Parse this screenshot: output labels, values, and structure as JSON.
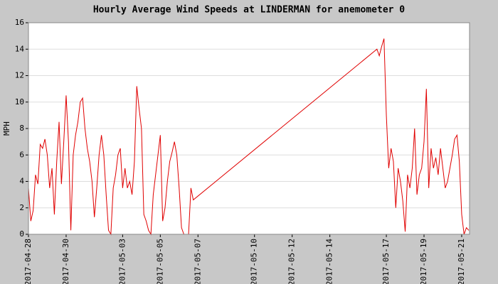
{
  "chart_data": {
    "type": "line",
    "title": "Hourly Average Wind Speeds at LINDERMAN for anemometer 0",
    "y_label": "MPH",
    "x": [
      "2017-04-28 00:00",
      "2017-04-28 03:00",
      "2017-04-28 06:00",
      "2017-04-28 09:00",
      "2017-04-28 12:00",
      "2017-04-28 15:00",
      "2017-04-28 18:00",
      "2017-04-28 21:00",
      "2017-04-29 00:00",
      "2017-04-29 03:00",
      "2017-04-29 06:00",
      "2017-04-29 09:00",
      "2017-04-29 12:00",
      "2017-04-29 15:00",
      "2017-04-29 18:00",
      "2017-04-29 21:00",
      "2017-04-30 00:00",
      "2017-04-30 03:00",
      "2017-04-30 06:00",
      "2017-04-30 09:00",
      "2017-04-30 12:00",
      "2017-04-30 15:00",
      "2017-04-30 18:00",
      "2017-04-30 21:00",
      "2017-05-01 00:00",
      "2017-05-01 03:00",
      "2017-05-01 06:00",
      "2017-05-01 09:00",
      "2017-05-01 12:00",
      "2017-05-01 15:00",
      "2017-05-01 18:00",
      "2017-05-01 21:00",
      "2017-05-02 00:00",
      "2017-05-02 03:00",
      "2017-05-02 06:00",
      "2017-05-02 09:00",
      "2017-05-02 12:00",
      "2017-05-02 15:00",
      "2017-05-02 18:00",
      "2017-05-02 21:00",
      "2017-05-03 00:00",
      "2017-05-03 03:00",
      "2017-05-03 06:00",
      "2017-05-03 09:00",
      "2017-05-03 12:00",
      "2017-05-03 15:00",
      "2017-05-03 18:00",
      "2017-05-03 21:00",
      "2017-05-04 00:00",
      "2017-05-04 03:00",
      "2017-05-04 06:00",
      "2017-05-04 09:00",
      "2017-05-04 12:00",
      "2017-05-04 15:00",
      "2017-05-04 18:00",
      "2017-05-04 21:00",
      "2017-05-05 00:00",
      "2017-05-05 03:00",
      "2017-05-05 06:00",
      "2017-05-05 09:00",
      "2017-05-05 12:00",
      "2017-05-05 15:00",
      "2017-05-05 18:00",
      "2017-05-05 21:00",
      "2017-05-06 00:00",
      "2017-05-06 03:00",
      "2017-05-06 06:00",
      "2017-05-06 09:00",
      "2017-05-06 12:00",
      "2017-05-06 15:00",
      "2017-05-06 18:00",
      "2017-05-16 12:00",
      "2017-05-16 15:00",
      "2017-05-16 18:00",
      "2017-05-16 21:00",
      "2017-05-17 00:00",
      "2017-05-17 03:00",
      "2017-05-17 06:00",
      "2017-05-17 09:00",
      "2017-05-17 12:00",
      "2017-05-17 15:00",
      "2017-05-17 18:00",
      "2017-05-17 21:00",
      "2017-05-18 00:00",
      "2017-05-18 03:00",
      "2017-05-18 06:00",
      "2017-05-18 09:00",
      "2017-05-18 12:00",
      "2017-05-18 15:00",
      "2017-05-18 18:00",
      "2017-05-18 21:00",
      "2017-05-19 00:00",
      "2017-05-19 03:00",
      "2017-05-19 06:00",
      "2017-05-19 09:00",
      "2017-05-19 12:00",
      "2017-05-19 15:00",
      "2017-05-19 18:00",
      "2017-05-19 21:00",
      "2017-05-20 00:00",
      "2017-05-20 03:00",
      "2017-05-20 06:00",
      "2017-05-20 09:00",
      "2017-05-20 12:00",
      "2017-05-20 15:00",
      "2017-05-20 18:00",
      "2017-05-20 21:00",
      "2017-05-21 00:00",
      "2017-05-21 03:00",
      "2017-05-21 06:00",
      "2017-05-21 09:00"
    ],
    "series": [
      {
        "color": "#e00000",
        "values": [
          3.5,
          1,
          1.8,
          4.5,
          3.8,
          6.8,
          6.5,
          7.2,
          6,
          3.5,
          5,
          1.5,
          5.5,
          8.5,
          3.8,
          7,
          10.5,
          7,
          0.3,
          6,
          7.5,
          8.5,
          10,
          10.3,
          8,
          6.5,
          5.5,
          4,
          1.3,
          3.5,
          6,
          7.5,
          6,
          3,
          0.3,
          0,
          3.5,
          4.5,
          6,
          6.5,
          3.5,
          5,
          3.5,
          4,
          3,
          5.5,
          11.2,
          9.5,
          8,
          1.5,
          1,
          0.3,
          0,
          3,
          4.5,
          6,
          7.5,
          1,
          2,
          4,
          5.5,
          6.2,
          7,
          6,
          3.5,
          0.5,
          0,
          0,
          0,
          3.5,
          2.6,
          14,
          13.5,
          14.2,
          14.8,
          9,
          5,
          6.5,
          5.5,
          2,
          5,
          4,
          2.5,
          0.2,
          4.5,
          3.5,
          5,
          8,
          3,
          4.5,
          5,
          7,
          11,
          3.5,
          6.5,
          5,
          5.8,
          4.5,
          6.5,
          5,
          3.5,
          4,
          5,
          6,
          7.2,
          7.5,
          5.5,
          1.5,
          0,
          0.5,
          0.3
        ]
      }
    ],
    "xlim": [
      "2017-04-28 00:00",
      "2017-05-21 10:00"
    ],
    "xticks": [
      "2017-04-28",
      "2017-04-30",
      "2017-05-03",
      "2017-05-05",
      "2017-05-07",
      "2017-05-10",
      "2017-05-12",
      "2017-05-14",
      "2017-05-17",
      "2017-05-19",
      "2017-05-21"
    ],
    "ylim": [
      0,
      16
    ],
    "yticks": [
      0,
      2,
      4,
      6,
      8,
      10,
      12,
      14,
      16
    ],
    "grid": true
  }
}
